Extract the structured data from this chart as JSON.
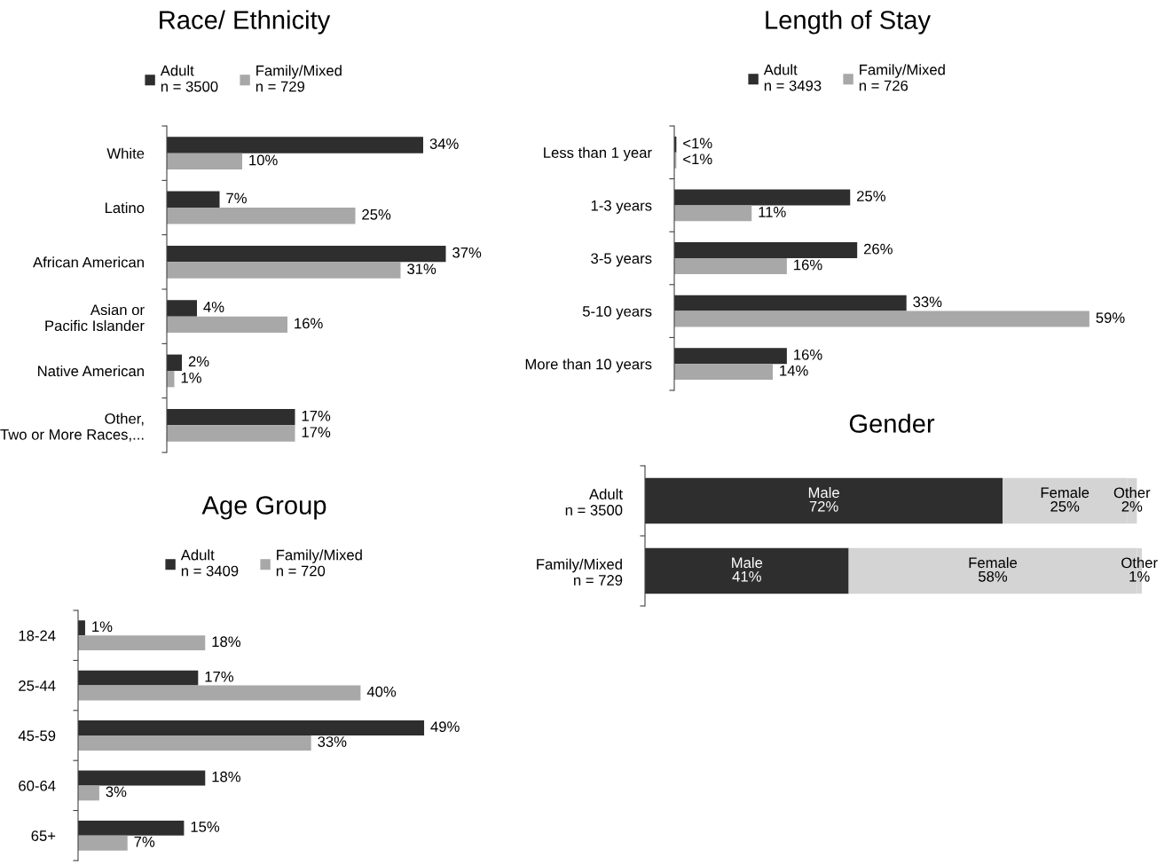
{
  "chart_data": [
    {
      "type": "bar",
      "orientation": "horizontal",
      "title": "Race/ Ethnicity",
      "legend": "top",
      "categories": [
        "White",
        "Latino",
        "African American",
        "Asian or\nPacific Islander",
        "Native American",
        "Other,\nTwo or More Races,..."
      ],
      "series": [
        {
          "name": "Adult\nn = 3500",
          "color": "#2e2e2e",
          "values": [
            34,
            7,
            37,
            4,
            2,
            17
          ],
          "value_labels": [
            "34%",
            "7%",
            "37%",
            "4%",
            "2%",
            "17%"
          ]
        },
        {
          "name": "Family/Mixed\nn = 729",
          "color": "#a8a8a8",
          "values": [
            10,
            25,
            31,
            16,
            1,
            17
          ],
          "value_labels": [
            "10%",
            "25%",
            "31%",
            "16%",
            "1%",
            "17%"
          ]
        }
      ]
    },
    {
      "type": "bar",
      "orientation": "horizontal",
      "title": "Length of Stay",
      "legend": "top",
      "categories": [
        "Less than 1 year",
        "1-3 years",
        "3-5 years",
        "5-10 years",
        "More than 10 years"
      ],
      "series": [
        {
          "name": "Adult\nn = 3493",
          "color": "#2e2e2e",
          "values": [
            0.3,
            25,
            26,
            33,
            16
          ],
          "value_labels": [
            "<1%",
            "25%",
            "26%",
            "33%",
            "16%"
          ]
        },
        {
          "name": "Family/Mixed\nn = 726",
          "color": "#a8a8a8",
          "values": [
            0.3,
            11,
            16,
            59,
            14
          ],
          "value_labels": [
            "<1%",
            "11%",
            "16%",
            "59%",
            "14%"
          ]
        }
      ]
    },
    {
      "type": "bar",
      "orientation": "horizontal",
      "stacked": true,
      "title": "Gender",
      "categories": [
        "Adult\nn = 3500",
        "Family/Mixed\nn = 729"
      ],
      "series": [
        {
          "name": "Male",
          "color": "#2e2e2e",
          "values": [
            72,
            41
          ],
          "value_labels": [
            "72%",
            "41%"
          ]
        },
        {
          "name": "Female",
          "color": "#d4d4d4",
          "values": [
            25,
            58
          ],
          "value_labels": [
            "25%",
            "58%"
          ]
        },
        {
          "name": "Other",
          "color": "#d4d4d4",
          "values": [
            2,
            1
          ],
          "value_labels": [
            "2%",
            "1%"
          ]
        }
      ]
    },
    {
      "type": "bar",
      "orientation": "horizontal",
      "title": "Age Group",
      "legend": "top",
      "categories": [
        "18-24",
        "25-44",
        "45-59",
        "60-64",
        "65+"
      ],
      "series": [
        {
          "name": "Adult\nn = 3409",
          "color": "#2e2e2e",
          "values": [
            1,
            17,
            49,
            18,
            15
          ],
          "value_labels": [
            "1%",
            "17%",
            "49%",
            "18%",
            "15%"
          ]
        },
        {
          "name": "Family/Mixed\nn = 720",
          "color": "#a8a8a8",
          "values": [
            18,
            40,
            33,
            3,
            7
          ],
          "value_labels": [
            "18%",
            "40%",
            "33%",
            "3%",
            "7%"
          ]
        }
      ]
    }
  ]
}
